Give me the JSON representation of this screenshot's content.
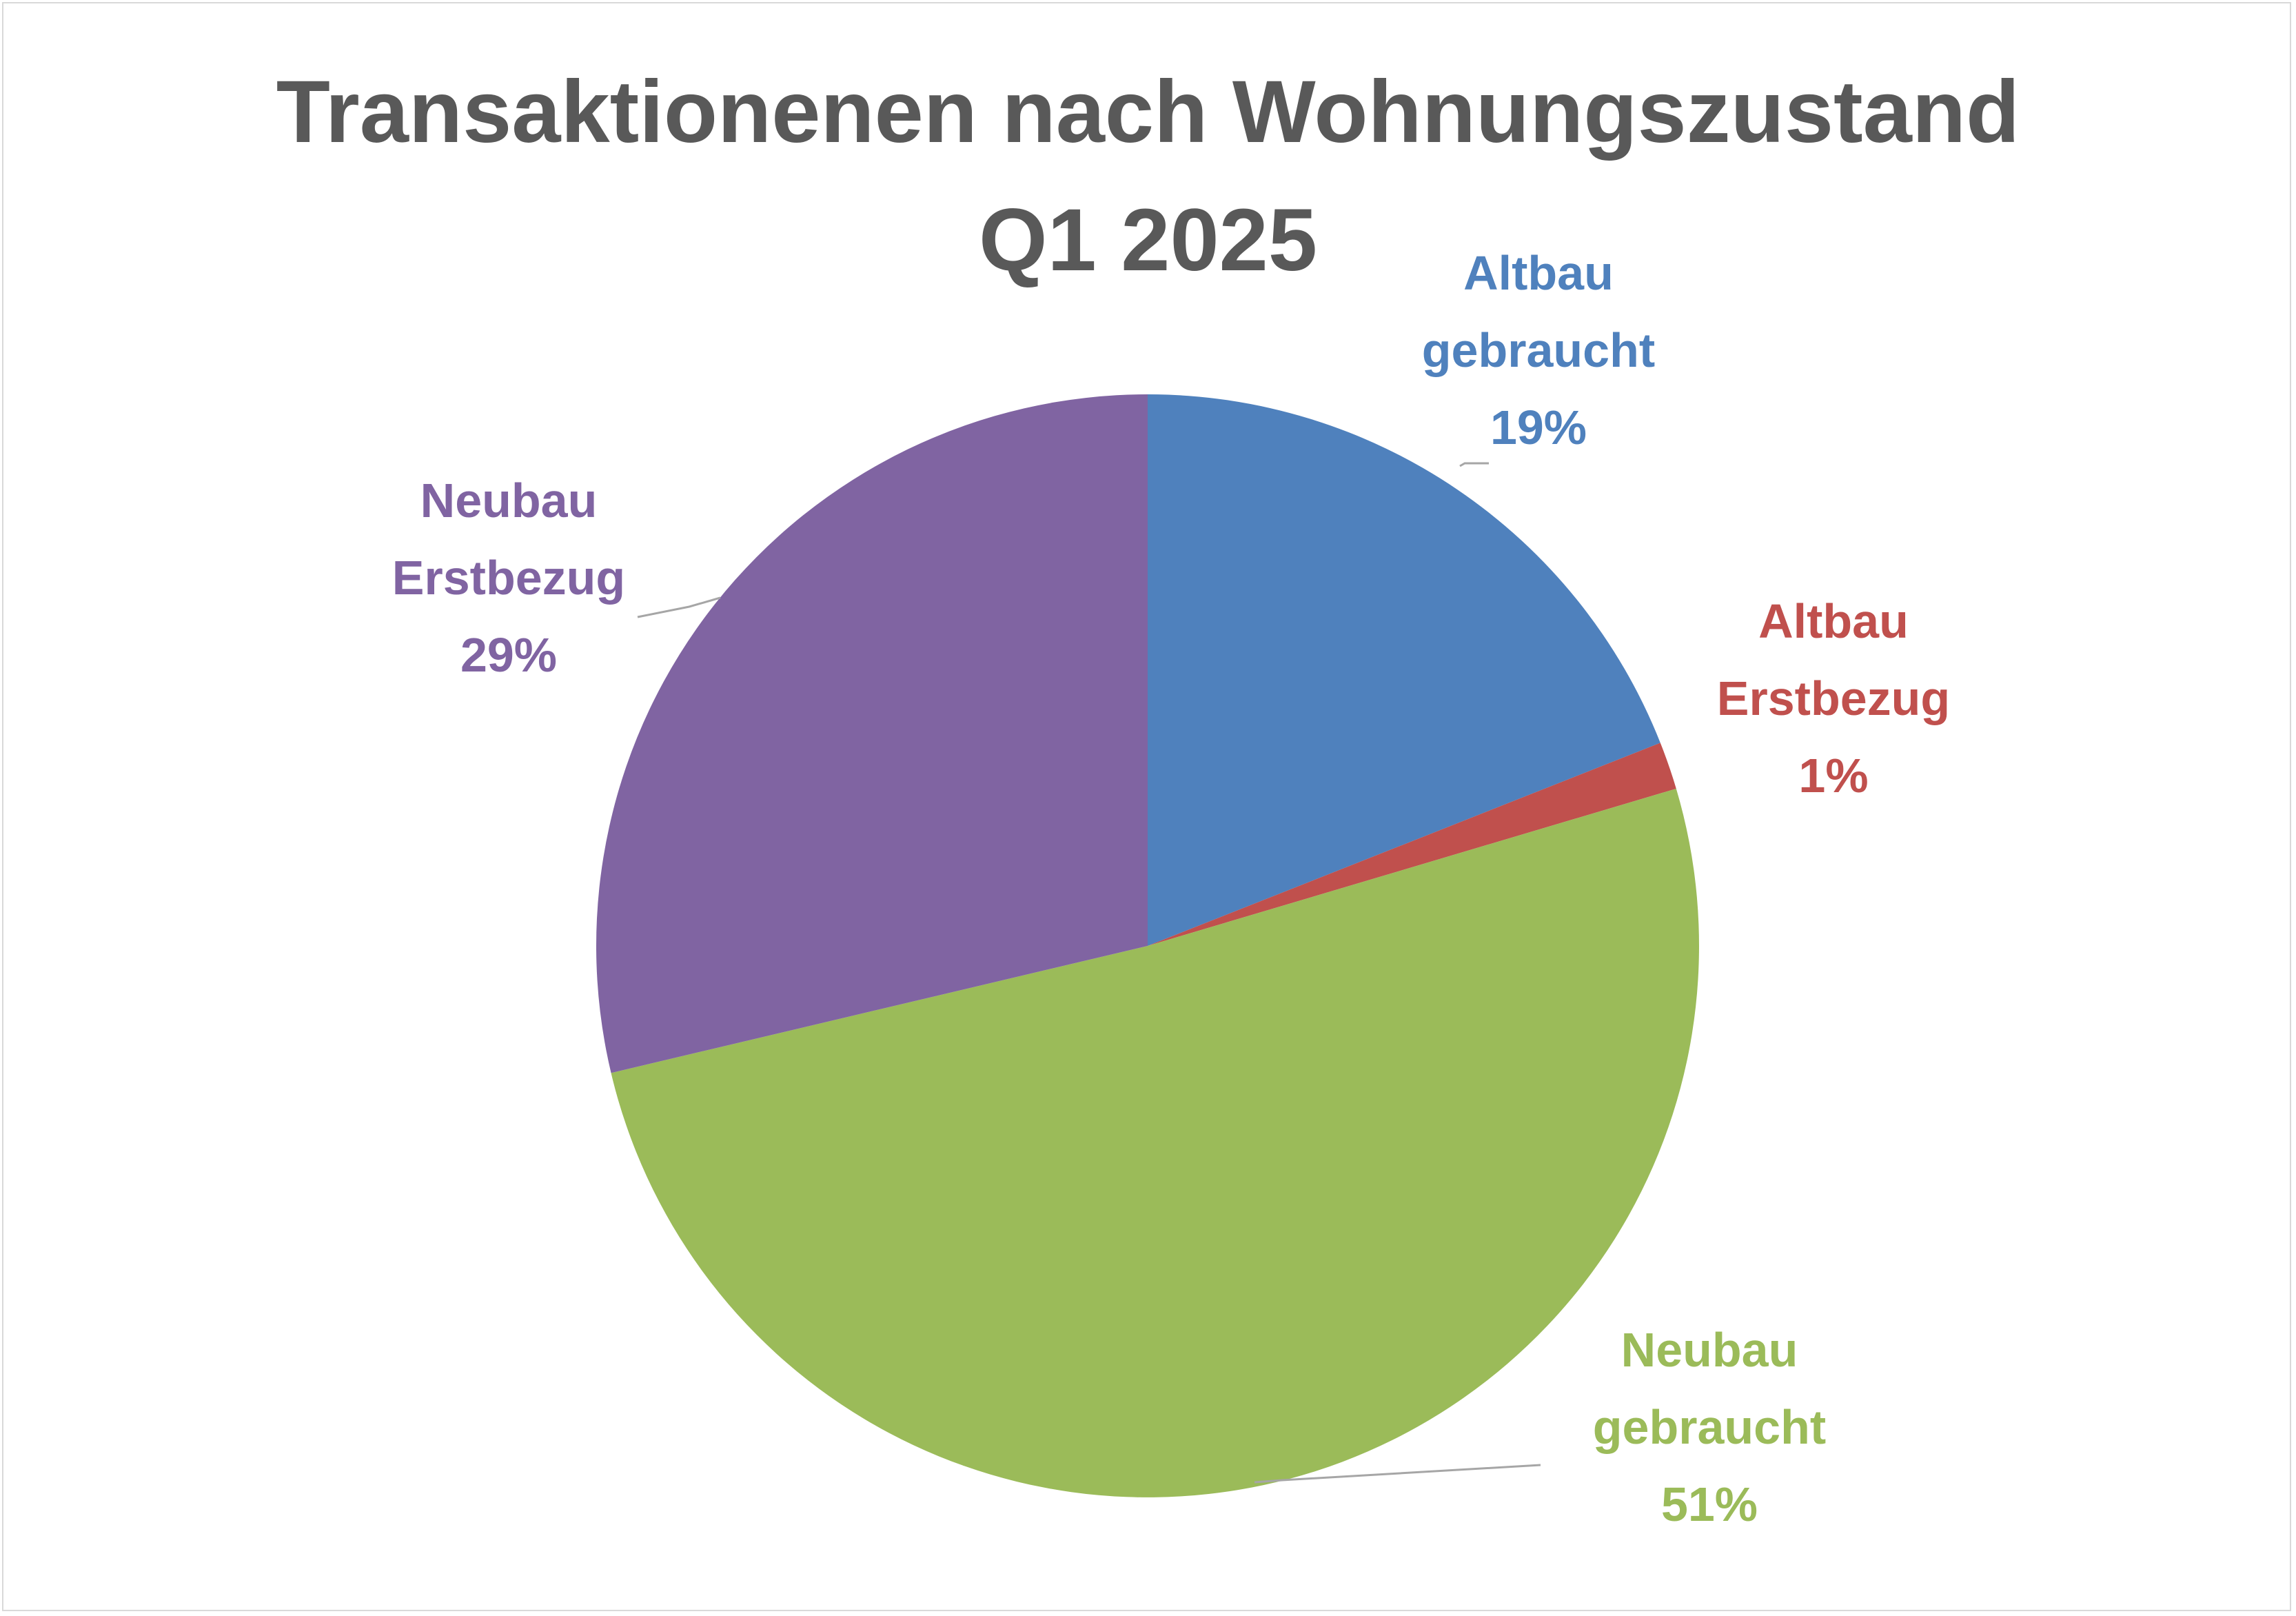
{
  "chart_data": {
    "type": "pie",
    "title": [
      "Transaktionenen nach Wohnungszustand",
      "Q1 2025"
    ],
    "start_angle_deg": 0,
    "direction": "clockwise",
    "slices": [
      {
        "label_lines": [
          "Altbau",
          "gebraucht"
        ],
        "value": 19,
        "value_label": "19%",
        "color": "#4f81bd"
      },
      {
        "label_lines": [
          "Altbau",
          "Erstbezug"
        ],
        "value": 1.4,
        "value_label": "1%",
        "color": "#c0504d"
      },
      {
        "label_lines": [
          "Neubau",
          "gebraucht"
        ],
        "value": 50.9,
        "value_label": "51%",
        "color": "#9bbb59"
      },
      {
        "label_lines": [
          "Neubau",
          "Erstbezug"
        ],
        "value": 28.7,
        "value_label": "29%",
        "color": "#8064a2"
      }
    ],
    "legend": "none",
    "leader_line_color": "#a6a6a6",
    "title_color": "#595959"
  }
}
